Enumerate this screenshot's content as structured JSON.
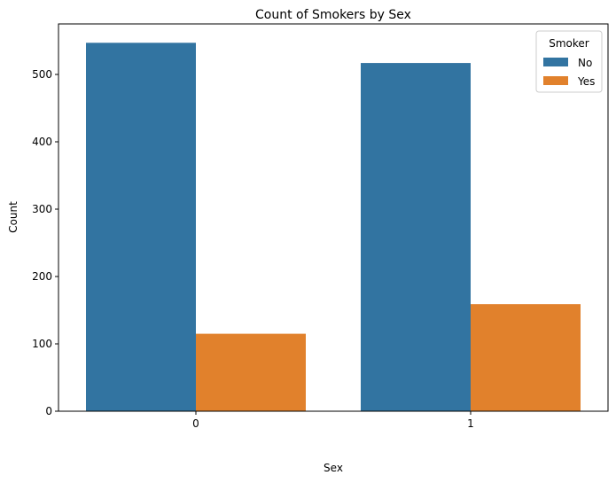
{
  "chart_data": {
    "type": "bar",
    "title": "Count of Smokers by Sex",
    "xlabel": "Sex",
    "ylabel": "Count",
    "categories": [
      "0",
      "1"
    ],
    "series": [
      {
        "name": "No",
        "color": "#3274a1",
        "values": [
          547,
          517
        ]
      },
      {
        "name": "Yes",
        "color": "#e1812c",
        "values": [
          115,
          159
        ]
      }
    ],
    "ylim": [
      0,
      575
    ],
    "yticks": [
      0,
      100,
      200,
      300,
      400,
      500
    ],
    "grid": false,
    "legend": {
      "title": "Smoker",
      "placement": "top-right"
    }
  }
}
